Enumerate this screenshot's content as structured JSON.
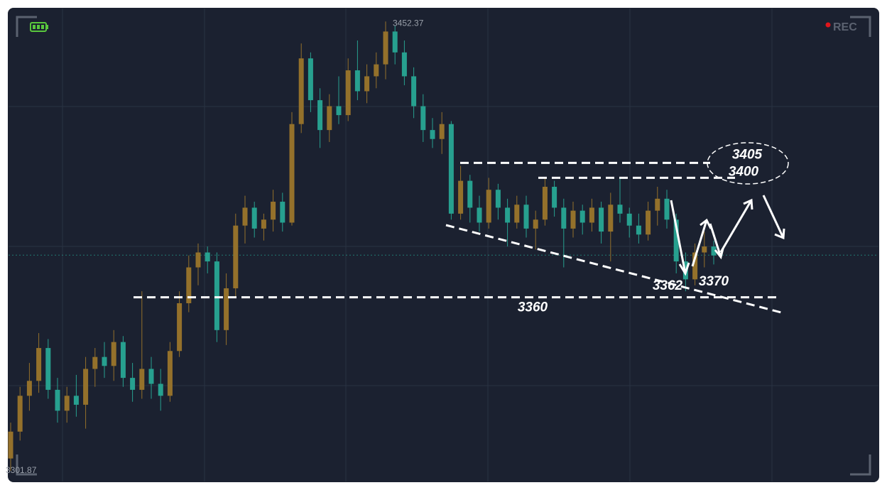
{
  "chart_data": {
    "type": "candlestick",
    "ohlc": [
      [
        3306,
        3318,
        3301.87,
        3315
      ],
      [
        3315,
        3330,
        3312,
        3327
      ],
      [
        3327,
        3338,
        3322,
        3332
      ],
      [
        3332,
        3348,
        3328,
        3343
      ],
      [
        3343,
        3346,
        3326,
        3329
      ],
      [
        3329,
        3333,
        3318,
        3322
      ],
      [
        3322,
        3330,
        3318,
        3327
      ],
      [
        3327,
        3334,
        3320,
        3324
      ],
      [
        3324,
        3340,
        3316,
        3336
      ],
      [
        3336,
        3343,
        3330,
        3340
      ],
      [
        3340,
        3345,
        3333,
        3337
      ],
      [
        3337,
        3349,
        3332,
        3345
      ],
      [
        3345,
        3347,
        3330,
        3333
      ],
      [
        3333,
        3338,
        3325,
        3329
      ],
      [
        3329,
        3362,
        3326,
        3336
      ],
      [
        3336,
        3340,
        3326,
        3331
      ],
      [
        3331,
        3336,
        3322,
        3327
      ],
      [
        3327,
        3345,
        3325,
        3342
      ],
      [
        3342,
        3362,
        3340,
        3358
      ],
      [
        3358,
        3374,
        3355,
        3370
      ],
      [
        3370,
        3378,
        3364,
        3375
      ],
      [
        3375,
        3377,
        3368,
        3372
      ],
      [
        3372,
        3375,
        3345,
        3349
      ],
      [
        3349,
        3368,
        3344,
        3363
      ],
      [
        3363,
        3388,
        3360,
        3384
      ],
      [
        3384,
        3394,
        3378,
        3390
      ],
      [
        3390,
        3392,
        3380,
        3383
      ],
      [
        3383,
        3388,
        3379,
        3386
      ],
      [
        3386,
        3396,
        3382,
        3392
      ],
      [
        3392,
        3395,
        3382,
        3385
      ],
      [
        3385,
        3422,
        3384,
        3418
      ],
      [
        3418,
        3445,
        3415,
        3440
      ],
      [
        3440,
        3442,
        3422,
        3426
      ],
      [
        3426,
        3430,
        3410,
        3416
      ],
      [
        3416,
        3428,
        3412,
        3424
      ],
      [
        3424,
        3434,
        3418,
        3421
      ],
      [
        3421,
        3440,
        3419,
        3436
      ],
      [
        3436,
        3446,
        3426,
        3429
      ],
      [
        3429,
        3438,
        3425,
        3434
      ],
      [
        3434,
        3442,
        3430,
        3438
      ],
      [
        3438,
        3452.37,
        3433,
        3449
      ],
      [
        3449,
        3451,
        3438,
        3442
      ],
      [
        3442,
        3446,
        3431,
        3434
      ],
      [
        3434,
        3437,
        3420,
        3424
      ],
      [
        3424,
        3428,
        3412,
        3416
      ],
      [
        3416,
        3420,
        3410,
        3413
      ],
      [
        3413,
        3422,
        3408,
        3418
      ],
      [
        3418,
        3419,
        3386,
        3388
      ],
      [
        3388,
        3404,
        3386,
        3399
      ],
      [
        3399,
        3401,
        3385,
        3390
      ],
      [
        3390,
        3394,
        3382,
        3385
      ],
      [
        3385,
        3400,
        3383,
        3396
      ],
      [
        3396,
        3398,
        3386,
        3390
      ],
      [
        3390,
        3393,
        3377,
        3385
      ],
      [
        3385,
        3394,
        3383,
        3391
      ],
      [
        3391,
        3394,
        3380,
        3383
      ],
      [
        3383,
        3389,
        3376,
        3386
      ],
      [
        3386,
        3400,
        3384,
        3397
      ],
      [
        3397,
        3399,
        3387,
        3390
      ],
      [
        3390,
        3393,
        3370,
        3383
      ],
      [
        3383,
        3392,
        3380,
        3389
      ],
      [
        3389,
        3391,
        3381,
        3385
      ],
      [
        3385,
        3393,
        3382,
        3390
      ],
      [
        3390,
        3392,
        3378,
        3382
      ],
      [
        3382,
        3395,
        3372,
        3391
      ],
      [
        3391,
        3400,
        3385,
        3388
      ],
      [
        3388,
        3390,
        3380,
        3384
      ],
      [
        3384,
        3388,
        3378,
        3381
      ],
      [
        3381,
        3392,
        3379,
        3389
      ],
      [
        3389,
        3397,
        3384,
        3393
      ],
      [
        3393,
        3396,
        3383,
        3386
      ],
      [
        3386,
        3388,
        3368,
        3372
      ],
      [
        3372,
        3375,
        3362,
        3366
      ],
      [
        3366,
        3378,
        3364,
        3375
      ],
      [
        3375,
        3382,
        3370,
        3377
      ],
      [
        3377,
        3379,
        3371,
        3374
      ]
    ],
    "up_color": "#94712b",
    "down_color": "#27a08f",
    "ylim": [
      3298.3,
      3456.7
    ],
    "max_label": 3452.37,
    "min_label": 3301.87,
    "last_price": 3374.1,
    "levels": [
      3405,
      3400,
      3360
    ],
    "point_labels": [
      3362,
      3370
    ],
    "rec_label": "REC"
  }
}
